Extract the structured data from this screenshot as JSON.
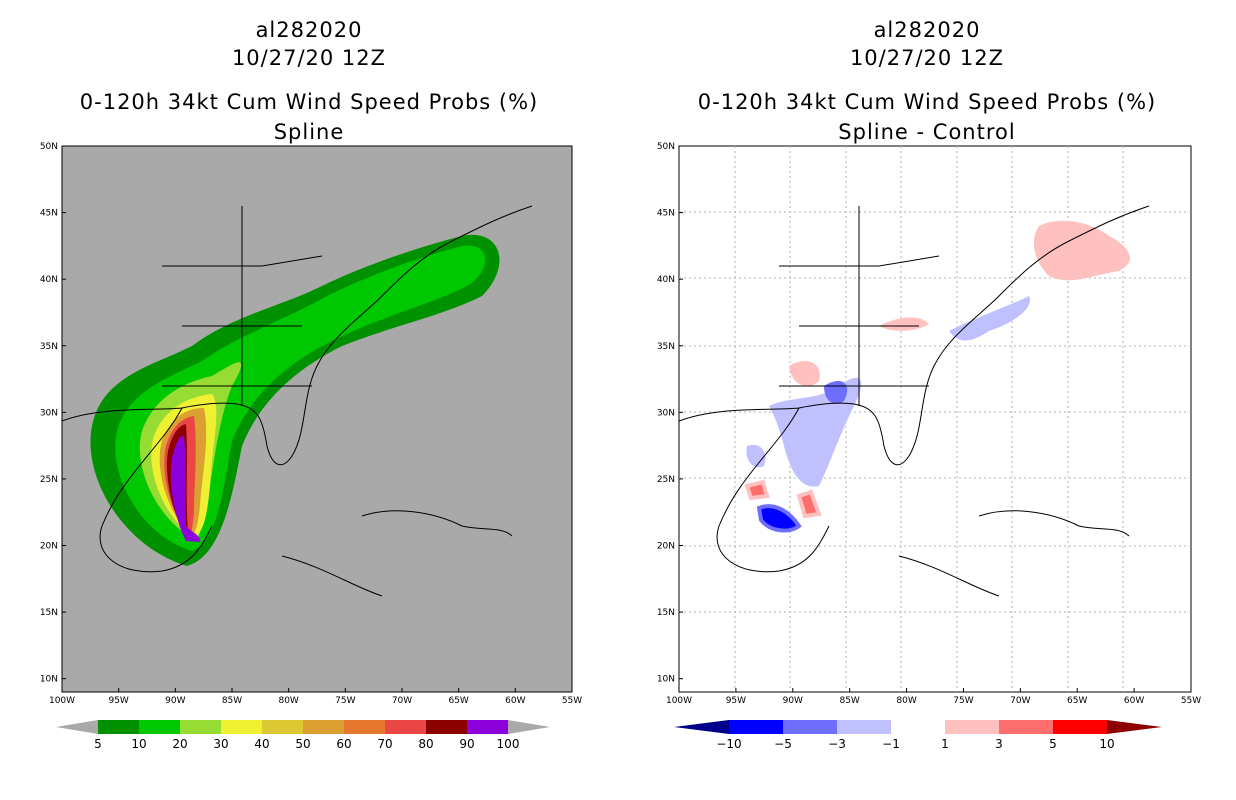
{
  "left_panel": {
    "storm_id": "al282020",
    "datetime": "10/27/20 12Z",
    "product": "0-120h 34kt Cum Wind Speed Probs (%)",
    "subtitle": "Spline",
    "background_color": "#a9a9a9",
    "colorbar": {
      "labels": [
        "5",
        "10",
        "20",
        "30",
        "40",
        "50",
        "60",
        "70",
        "80",
        "90",
        "100"
      ],
      "colors": [
        "#009100",
        "#00c800",
        "#96dc32",
        "#f0f032",
        "#dcc832",
        "#dca032",
        "#e6782d",
        "#eb4646",
        "#8c0000",
        "#8c00dc"
      ]
    }
  },
  "right_panel": {
    "storm_id": "al282020",
    "datetime": "10/27/20 12Z",
    "product": "0-120h 34kt Cum Wind Speed Probs (%)",
    "subtitle": "Spline - Control",
    "background_color": "#ffffff",
    "colorbar": {
      "labels": [
        "-10",
        "-5",
        "-3",
        "-1",
        "1",
        "3",
        "5",
        "10"
      ],
      "colors": [
        "#00008c",
        "#0000ff",
        "#6e6eff",
        "#c0c0ff",
        "#ffffff",
        "#ffc0c0",
        "#ff6e6e",
        "#ff0000",
        "#8c0000"
      ]
    }
  },
  "axes": {
    "lat_labels": [
      "50N",
      "45N",
      "40N",
      "35N",
      "30N",
      "25N",
      "20N",
      "15N",
      "10N"
    ],
    "lon_labels": [
      "100W",
      "95W",
      "90W",
      "85W",
      "80W",
      "75W",
      "70W",
      "65W",
      "60W",
      "55W"
    ]
  }
}
